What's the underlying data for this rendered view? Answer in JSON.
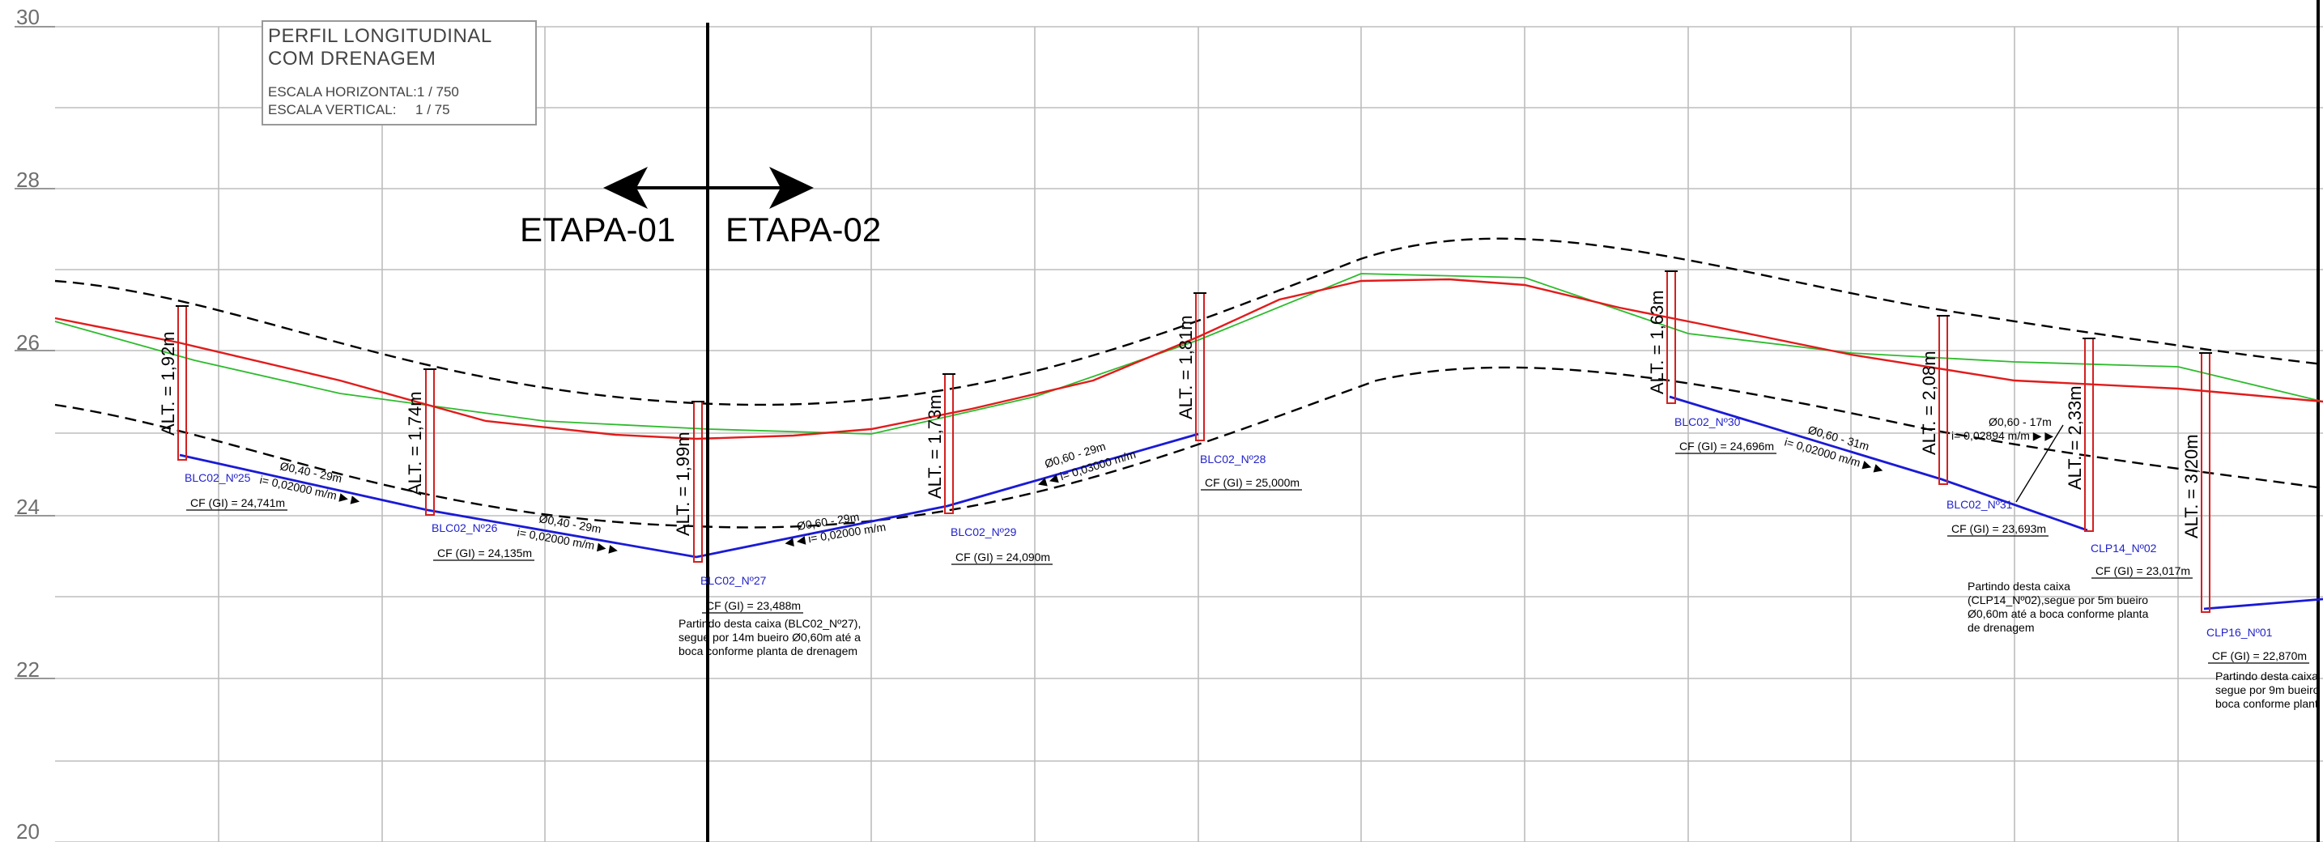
{
  "title_block": {
    "line1": "PERFIL LONGITUDINAL",
    "line2": "COM DRENAGEM",
    "scale_h": "ESCALA HORIZONTAL:1 / 750",
    "scale_v": "ESCALA VERTICAL:     1 / 75"
  },
  "y_axis": {
    "labels": [
      "30",
      "28",
      "26",
      "24",
      "22",
      "20"
    ],
    "range": [
      20,
      30
    ]
  },
  "etapas": {
    "left": "ETAPA-01",
    "right": "ETAPA-02"
  },
  "alt_labels": [
    "ALT. = 1,92m",
    "ALT. = 1,74m",
    "ALT. = 1,99m",
    "ALT. = 1,73m",
    "ALT. = 1,81m",
    "ALT. = 1,63m",
    "ALT. = 2,08m",
    "ALT. = 2,33m",
    "ALT. = 3,20m"
  ],
  "boxes": [
    {
      "id": "BLC02_Nº25",
      "cf": "CF (GI) = 24,741m"
    },
    {
      "id": "BLC02_Nº26",
      "cf": "CF (GI) = 24,135m"
    },
    {
      "id": "BLC02_Nº27",
      "cf": "CF (GI) = 23,488m"
    },
    {
      "id": "BLC02_Nº29",
      "cf": "CF (GI) = 24,090m"
    },
    {
      "id": "BLC02_Nº28",
      "cf": "CF (GI) = 25,000m"
    },
    {
      "id": "BLC02_Nº30",
      "cf": "CF (GI) = 24,696m"
    },
    {
      "id": "BLC02_Nº31",
      "cf": "CF (GI) = 23,693m"
    },
    {
      "id": "CLP14_Nº02",
      "cf": "CF (GI) = 23,017m"
    },
    {
      "id": "CLP16_Nº01",
      "cf": "CF (GI) = 22,870m"
    }
  ],
  "pipes": [
    {
      "dim": "Ø0,40 - 29m",
      "slope": "i= 0,02000 m/m ▶ ▶"
    },
    {
      "dim": "Ø0,40 - 29m",
      "slope": "i= 0,02000 m/m ▶ ▶"
    },
    {
      "dim": "Ø0,60 - 29m",
      "slope": "◀ ◀ i= 0,02000 m/m"
    },
    {
      "dim": "Ø0,60 - 29m",
      "slope": "◀ ◀ i= 0,03000 m/m"
    },
    {
      "dim": "Ø0,60 - 31m",
      "slope": "i= 0,02000 m/m ▶ ▶"
    },
    {
      "dim": "Ø0,60 - 17m",
      "slope": "i= 0,02894 m/m ▶ ▶"
    }
  ],
  "notes": {
    "n1": [
      "Partindo desta caixa (BLC02_Nº27),",
      "segue por 14m bueiro Ø0,60m até a",
      "boca conforme planta de drenagem"
    ],
    "n2": [
      "Partindo desta caixa",
      "(CLP14_Nº02),segue por 5m bueiro",
      "Ø0,60m até a boca conforme planta",
      "de drenagem"
    ],
    "n3": [
      "Partindo desta caixa",
      "segue por 9m bueiro",
      "boca conforme plant"
    ]
  },
  "colors": {
    "terrain_existing": "#2dbb2d",
    "terrain_design": "#e21b1b",
    "pipe": "#1a1ad6",
    "offset": "#000000",
    "grid": "#bdbdbd",
    "manhole": "#d42020"
  }
}
